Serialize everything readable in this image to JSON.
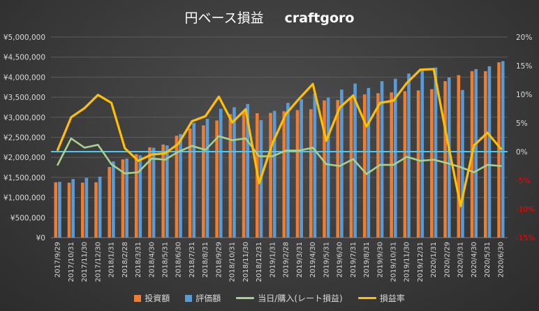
{
  "chart_data": {
    "title": "円ベース損益",
    "subtitle": "craftgoro",
    "type": "bar",
    "categories": [
      "2017/9/29",
      "2017/10/31",
      "2017/11/30",
      "2017/12/30",
      "2018/1/31",
      "2018/2/28",
      "2018/3/31",
      "2018/4/30",
      "2018/5/31",
      "2018/6/30",
      "2018/7/31",
      "2018/8/31",
      "2018/9/29",
      "2018/10/31",
      "2018/11/30",
      "2018/12/31",
      "2019/1/31",
      "2019/2/28",
      "2019/3/31",
      "2019/4/30",
      "2019/5/31",
      "2019/6/30",
      "2019/7/31",
      "2019/8/31",
      "2019/9/30",
      "2019/10/31",
      "2019/11/30",
      "2019/12/31",
      "2020/1/31",
      "2020/2/29",
      "2020/3/31",
      "2020/4/30",
      "2020/5/31",
      "2020/6/30"
    ],
    "series": [
      {
        "name": "投資額",
        "kind": "bar",
        "axis": "left",
        "color": "#ed7d31",
        "values": [
          1380000,
          1370000,
          1370000,
          1380000,
          1760000,
          1950000,
          2080000,
          2250000,
          2320000,
          2540000,
          2720000,
          2800000,
          2920000,
          3080000,
          3130000,
          3100000,
          3110000,
          3150000,
          3180000,
          3200000,
          3420000,
          3430000,
          3490000,
          3570000,
          3600000,
          3620000,
          3650000,
          3670000,
          3700000,
          3900000,
          4050000,
          4150000,
          4150000,
          4370000
        ]
      },
      {
        "name": "評価額",
        "kind": "bar",
        "axis": "left",
        "color": "#5b9bd5",
        "values": [
          1390000,
          1460000,
          1490000,
          1520000,
          1900000,
          1970000,
          2050000,
          2240000,
          2300000,
          2580000,
          2860000,
          2960000,
          3210000,
          3250000,
          3330000,
          2930000,
          3160000,
          3360000,
          3450000,
          3590000,
          3490000,
          3690000,
          3840000,
          3730000,
          3900000,
          3960000,
          4090000,
          4180000,
          4240000,
          3990000,
          3680000,
          4200000,
          4270000,
          4400000
        ]
      },
      {
        "name": "当日/購入(レート損益)",
        "kind": "line",
        "axis": "right",
        "color": "#a9d18e",
        "values": [
          -2.3,
          2.3,
          0.7,
          1.2,
          -2.2,
          -3.8,
          -3.6,
          -1.2,
          -1.4,
          0.0,
          1.0,
          0.3,
          2.7,
          2.0,
          2.3,
          -0.8,
          -0.8,
          0.2,
          0.2,
          0.7,
          -2.2,
          -2.5,
          -1.3,
          -3.9,
          -2.3,
          -2.3,
          -0.9,
          -1.6,
          -1.4,
          -2.0,
          -2.7,
          -3.6,
          -2.3,
          -2.5
        ]
      },
      {
        "name": "損益率",
        "kind": "line",
        "axis": "right",
        "color": "#ffc000",
        "values": [
          0.3,
          6.0,
          7.6,
          9.9,
          8.5,
          0.6,
          -1.6,
          -0.5,
          -0.3,
          1.4,
          5.3,
          6.2,
          9.6,
          5.1,
          7.4,
          -5.5,
          1.5,
          6.6,
          9.3,
          11.8,
          1.9,
          7.7,
          9.8,
          4.4,
          8.5,
          8.9,
          12.0,
          14.3,
          14.4,
          2.2,
          -9.5,
          1.1,
          3.3,
          0.5
        ]
      }
    ],
    "left_axis": {
      "min": 0,
      "max": 5000000,
      "ticks": [
        "¥0",
        "¥500,000",
        "¥1,000,000",
        "¥1,500,000",
        "¥2,000,000",
        "¥2,500,000",
        "¥3,000,000",
        "¥3,500,000",
        "¥4,000,000",
        "¥4,500,000",
        "¥5,000,000"
      ]
    },
    "right_axis": {
      "min": -15,
      "max": 20,
      "ticks": [
        "-15%",
        "-10%",
        "-5%",
        "0%",
        "5%",
        "10%",
        "15%",
        "20%"
      ]
    },
    "reference_line": {
      "value": 0,
      "axis": "right",
      "color": "#4dc8f0"
    },
    "grid": true,
    "legend_position": "bottom",
    "colors": {
      "axis_text": "#d9d9d9",
      "negative_text": "#ff0000",
      "grid": "#5c5c5c"
    }
  }
}
